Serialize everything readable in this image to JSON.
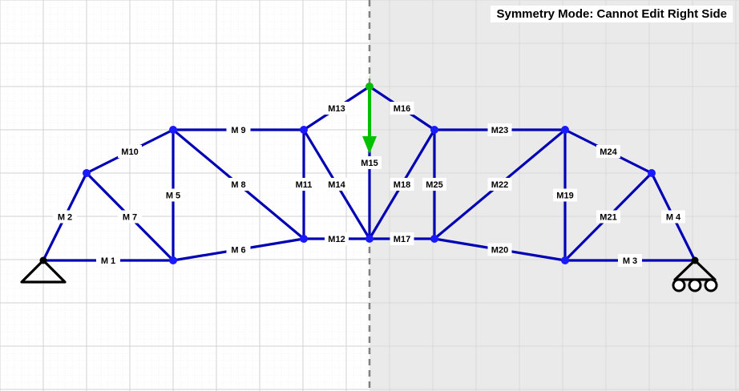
{
  "banner": {
    "text": "Symmetry Mode: Cannot Edit Right Side"
  },
  "colors": {
    "member": "#0000b4",
    "joint": "#1a1aff",
    "load": "#00c000",
    "support": "#000000",
    "locked_region": "#e6e6e6",
    "grid_major": "#d2d2d2",
    "grid_minor": "#e8e8e8",
    "symmetry_line": "#808080"
  },
  "load": {
    "icon": "down-arrow-icon",
    "joint_label": "↓"
  },
  "supports": [
    {
      "icon": "pin-support-icon",
      "side": "left"
    },
    {
      "icon": "roller-support-icon",
      "side": "right"
    }
  ],
  "members": [
    {
      "label": "M 1"
    },
    {
      "label": "M 2"
    },
    {
      "label": "M 3"
    },
    {
      "label": "M 4"
    },
    {
      "label": "M 5"
    },
    {
      "label": "M 6"
    },
    {
      "label": "M 7"
    },
    {
      "label": "M 8"
    },
    {
      "label": "M 9"
    },
    {
      "label": "M10"
    },
    {
      "label": "M11"
    },
    {
      "label": "M12"
    },
    {
      "label": "M13"
    },
    {
      "label": "M14"
    },
    {
      "label": "M15"
    },
    {
      "label": "M16"
    },
    {
      "label": "M17"
    },
    {
      "label": "M18"
    },
    {
      "label": "M19"
    },
    {
      "label": "M20"
    },
    {
      "label": "M21"
    },
    {
      "label": "M22"
    },
    {
      "label": "M23"
    },
    {
      "label": "M24"
    },
    {
      "label": "M25"
    }
  ]
}
